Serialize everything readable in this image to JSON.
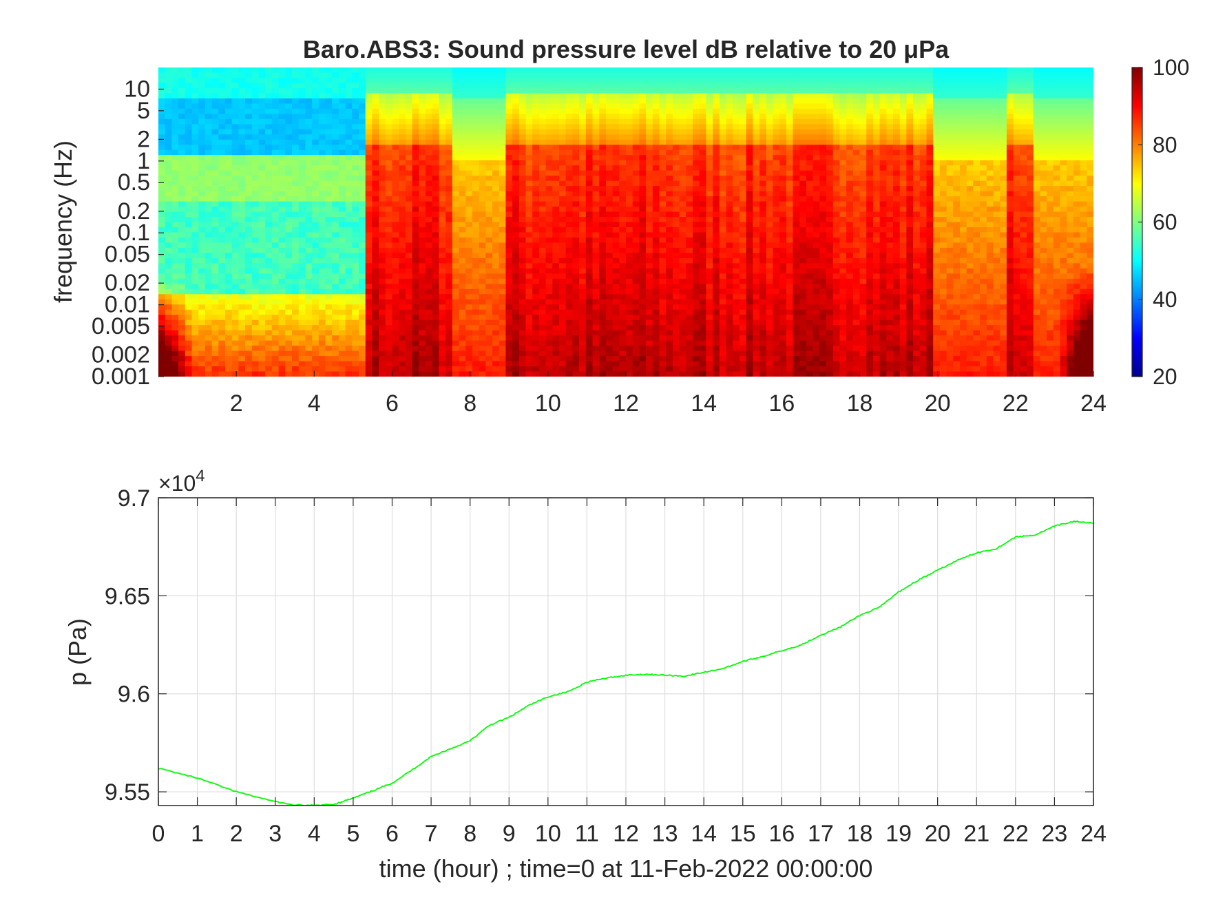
{
  "chart_data": [
    {
      "type": "heatmap",
      "title": "Baro.ABS3: Sound pressure level dB relative to 20 μPa",
      "ylabel": "frequency (Hz)",
      "xlabel": "",
      "x_scale": "linear",
      "y_scale": "log",
      "xlim": [
        0,
        24
      ],
      "ylim": [
        0.001,
        20
      ],
      "x_ticks": [
        "2",
        "4",
        "6",
        "8",
        "10",
        "12",
        "14",
        "16",
        "18",
        "20",
        "22",
        "24"
      ],
      "y_ticks": [
        "0.001",
        "0.002",
        "0.005",
        "0.01",
        "0.02",
        "0.05",
        "0.1",
        "0.2",
        "0.5",
        "1",
        "2",
        "5",
        "10"
      ],
      "colormap": "jet",
      "colorbar": {
        "min": 20,
        "max": 100,
        "ticks": [
          "20",
          "40",
          "60",
          "80",
          "100"
        ]
      },
      "grid": false,
      "activity_hours": [
        {
          "start": 0,
          "end": 5.3,
          "level": "low"
        },
        {
          "start": 5.3,
          "end": 7.6,
          "level": "high"
        },
        {
          "start": 7.6,
          "end": 8.9,
          "level": "medium"
        },
        {
          "start": 8.9,
          "end": 19.8,
          "level": "high"
        },
        {
          "start": 19.8,
          "end": 21.8,
          "level": "medium"
        },
        {
          "start": 21.8,
          "end": 22.4,
          "level": "high"
        },
        {
          "start": 22.4,
          "end": 24,
          "level": "medium"
        }
      ]
    },
    {
      "type": "line",
      "title": "",
      "xlabel": "time (hour) ; time=0 at 11-Feb-2022 00:00:00",
      "ylabel": "p (Pa)",
      "y_exponent": "×10",
      "y_exponent_power": "4",
      "xlim": [
        0,
        24
      ],
      "ylim": [
        95430,
        97000
      ],
      "x_ticks": [
        "0",
        "1",
        "2",
        "3",
        "4",
        "5",
        "6",
        "7",
        "8",
        "9",
        "10",
        "11",
        "12",
        "13",
        "14",
        "15",
        "16",
        "17",
        "18",
        "19",
        "20",
        "21",
        "22",
        "23",
        "24"
      ],
      "y_ticks": [
        {
          "label": "9.55",
          "value": 95500
        },
        {
          "label": "9.6",
          "value": 96000
        },
        {
          "label": "9.65",
          "value": 96500
        },
        {
          "label": "9.7",
          "value": 97000
        }
      ],
      "grid": true,
      "line_color": "#00ff00",
      "x": [
        0,
        1,
        2,
        3,
        3.5,
        4,
        4.5,
        5,
        5.5,
        6,
        6.5,
        7,
        7.5,
        8,
        8.5,
        9,
        9.5,
        10,
        10.5,
        11,
        11.5,
        12,
        12.5,
        13,
        13.5,
        14,
        14.5,
        15,
        15.5,
        16,
        16.5,
        17,
        17.5,
        18,
        18.5,
        19,
        19.5,
        20,
        20.5,
        21,
        21.5,
        22,
        22.5,
        23,
        23.5,
        24
      ],
      "y": [
        95620,
        95570,
        95500,
        95450,
        95432,
        95430,
        95436,
        95468,
        95505,
        95545,
        95610,
        95680,
        95720,
        95760,
        95840,
        95880,
        95940,
        95985,
        96010,
        96060,
        96080,
        96095,
        96100,
        96095,
        96090,
        96110,
        96130,
        96165,
        96190,
        96220,
        96250,
        96300,
        96340,
        96400,
        96440,
        96520,
        96580,
        96630,
        96680,
        96720,
        96740,
        96800,
        96810,
        96855,
        96880,
        96870
      ]
    }
  ]
}
